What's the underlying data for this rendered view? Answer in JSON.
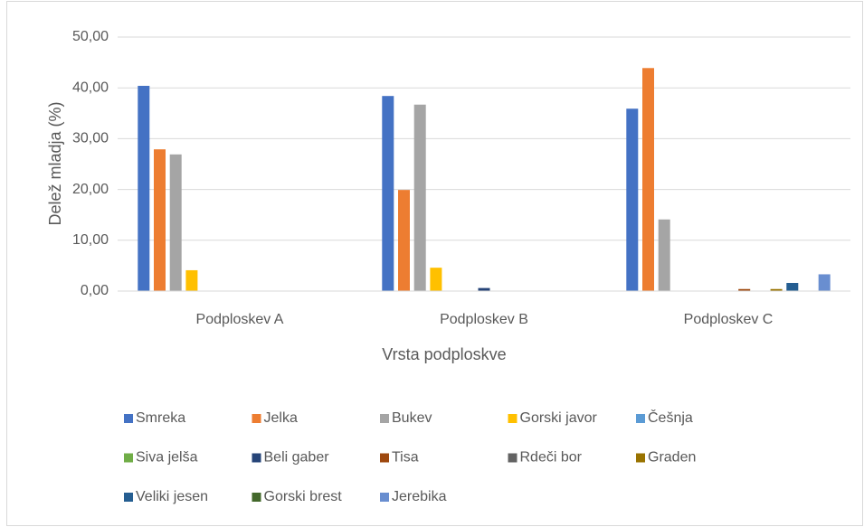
{
  "chart_data": {
    "type": "bar",
    "x_label": "Vrsta podploskve",
    "y_label": "Delež mladja (%)",
    "categories": [
      "Podploskev A",
      "Podploskev B",
      "Podploskev C"
    ],
    "ylim": [
      0,
      50
    ],
    "yticks": [
      {
        "value": 0,
        "label": "0,00"
      },
      {
        "value": 10,
        "label": "10,00"
      },
      {
        "value": 20,
        "label": "20,00"
      },
      {
        "value": 30,
        "label": "30,00"
      },
      {
        "value": 40,
        "label": "40,00"
      },
      {
        "value": 50,
        "label": "50,00"
      }
    ],
    "grid": true,
    "legend": "bottom",
    "series": [
      {
        "name": "Smreka",
        "color": "#4472c4",
        "values": [
          40.4,
          38.4,
          35.9
        ]
      },
      {
        "name": "Jelka",
        "color": "#ed7d31",
        "values": [
          27.9,
          19.9,
          43.9
        ]
      },
      {
        "name": "Bukev",
        "color": "#a5a5a5",
        "values": [
          26.9,
          36.7,
          14.1
        ]
      },
      {
        "name": "Gorski javor",
        "color": "#ffc000",
        "values": [
          4.1,
          4.6,
          0
        ]
      },
      {
        "name": "Češnja",
        "color": "#5b9bd5",
        "values": [
          0,
          0,
          0
        ]
      },
      {
        "name": "Siva jelša",
        "color": "#70ad47",
        "values": [
          0,
          0,
          0
        ]
      },
      {
        "name": "Beli gaber",
        "color": "#264478",
        "values": [
          0,
          0.6,
          0
        ]
      },
      {
        "name": "Tisa",
        "color": "#9e480e",
        "values": [
          0,
          0,
          0.4
        ]
      },
      {
        "name": "Rdeči bor",
        "color": "#636363",
        "values": [
          0,
          0,
          0
        ]
      },
      {
        "name": "Graden",
        "color": "#997300",
        "values": [
          0,
          0,
          0.4
        ]
      },
      {
        "name": "Veliki jesen",
        "color": "#255e91",
        "values": [
          0,
          0,
          1.6
        ]
      },
      {
        "name": "Gorski brest",
        "color": "#43682b",
        "values": [
          0,
          0,
          0
        ]
      },
      {
        "name": "Jerebika",
        "color": "#698ed0",
        "values": [
          0,
          0,
          3.3
        ]
      }
    ]
  }
}
